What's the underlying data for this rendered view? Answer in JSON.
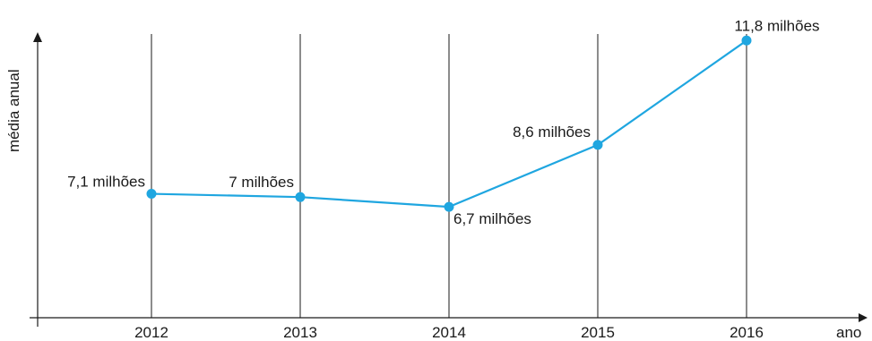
{
  "chart_data": {
    "type": "line",
    "title": "",
    "xlabel": "ano",
    "ylabel": "média anual",
    "categories": [
      "2012",
      "2013",
      "2014",
      "2015",
      "2016"
    ],
    "series": [
      {
        "values": [
          7.1,
          7.0,
          6.7,
          8.6,
          11.8
        ],
        "labels": [
          "7,1 milhões",
          "7 milhões",
          "6,7 milhões",
          "8,6 milhões",
          "11,8 milhões"
        ]
      }
    ],
    "value_unit": "milhões",
    "ylim": [
      3.3,
      12.0
    ],
    "grid": "vertical",
    "colors": {
      "line": "#1fa6e0",
      "axis": "#1a1a1a"
    }
  }
}
